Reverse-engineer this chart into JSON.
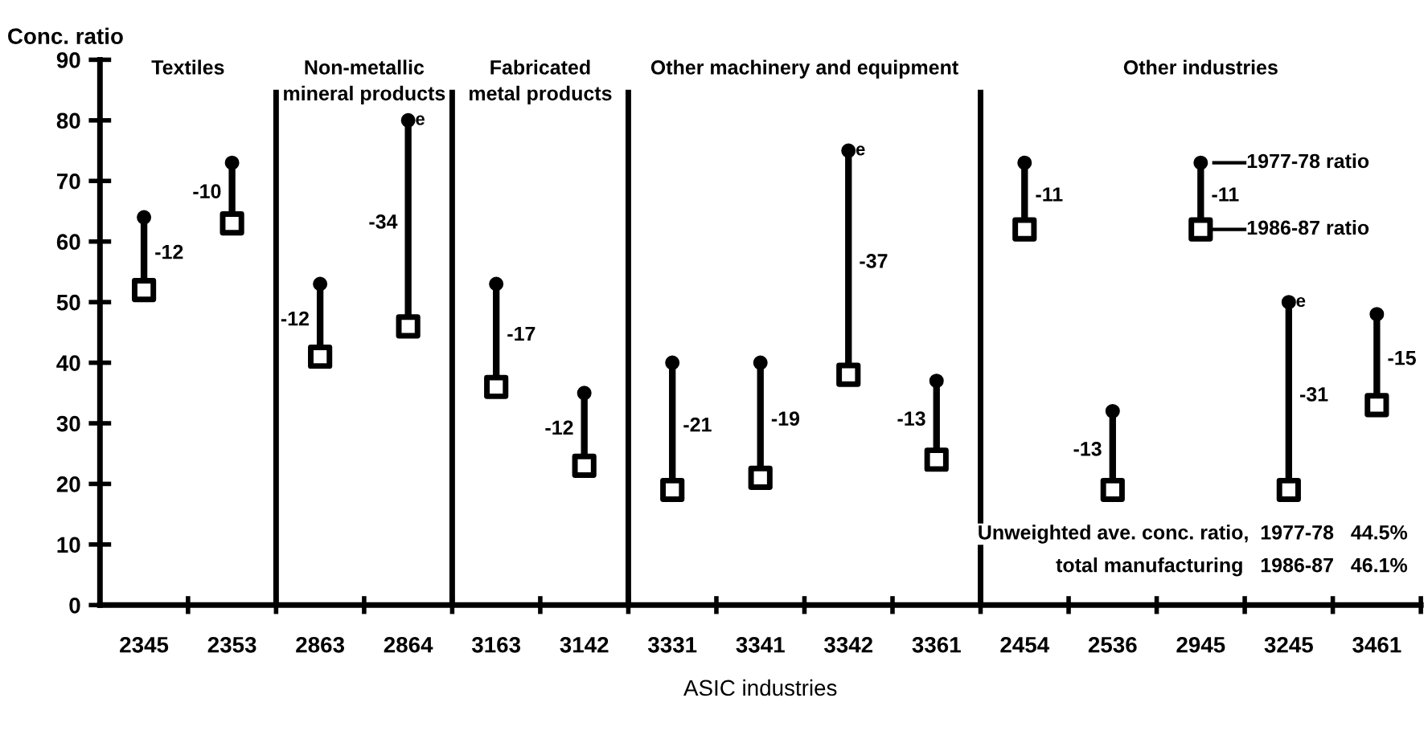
{
  "chart_data": {
    "type": "scatter",
    "ylabel": "Conc. ratio",
    "xlabel": "ASIC industries",
    "categories": [
      "2345",
      "2353",
      "2863",
      "2864",
      "3163",
      "3142",
      "3331",
      "3341",
      "3342",
      "3361",
      "2454",
      "2536",
      "2945",
      "3245",
      "3461"
    ],
    "series": [
      {
        "name": "1977-78 ratio",
        "color": "#000000",
        "marker": "circle",
        "values": [
          64,
          73,
          53,
          80,
          53,
          35,
          40,
          40,
          75,
          37,
          73,
          32,
          73,
          50,
          48
        ]
      },
      {
        "name": "1986-87 ratio",
        "color": "#000000",
        "marker": "square",
        "values": [
          52,
          63,
          41,
          46,
          36,
          23,
          19,
          21,
          38,
          24,
          62,
          19,
          62,
          19,
          33
        ]
      }
    ],
    "ylim": [
      0,
      90
    ],
    "yticks": [
      0,
      10,
      20,
      30,
      40,
      50,
      60,
      70,
      80,
      90
    ],
    "annotations": [
      "Textiles",
      "Non-metallic\nmineral products",
      "Fabricated\nmetal products",
      "Other machinery and equipment",
      "Other industries",
      "Unweighted ave. conc. ratio,  1977-78   44.5%",
      "total manufacturing   1986-87   46.1%",
      "-12",
      "-10",
      "-12",
      "-34",
      "-17",
      "-12",
      "-21",
      "-19",
      "-37",
      "-13",
      "-11",
      "-13",
      "-11",
      "-31",
      "-15",
      "e",
      "e",
      "e"
    ],
    "grid": false,
    "legend": "right"
  }
}
